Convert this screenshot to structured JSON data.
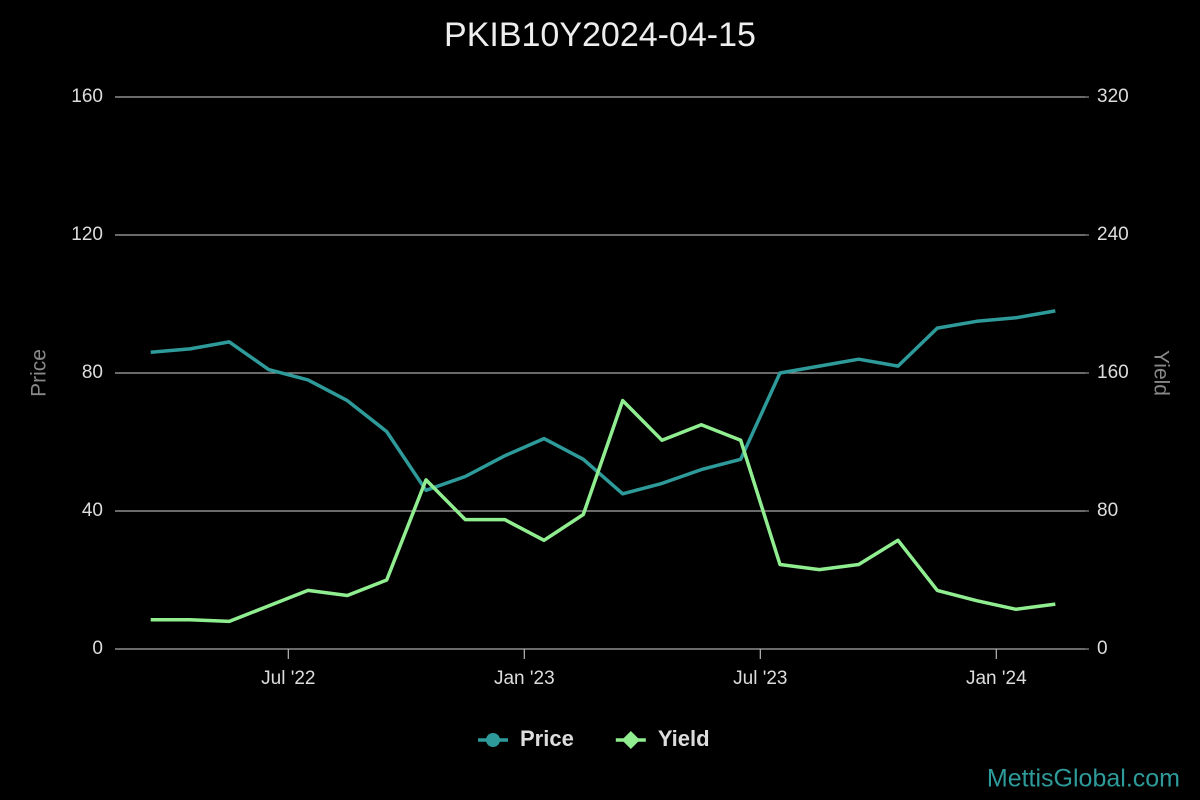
{
  "chart_data": {
    "type": "line",
    "title": "PKIB10Y2024-04-15",
    "y_label": "Price",
    "y2_label": "Yield",
    "watermark": "MettisGlobal.com",
    "x": [
      "2022-03",
      "2022-04",
      "2022-05",
      "2022-06",
      "2022-07",
      "2022-08",
      "2022-09",
      "2022-10",
      "2022-11",
      "2022-12",
      "2023-01",
      "2023-02",
      "2023-03",
      "2023-04",
      "2023-05",
      "2023-06",
      "2023-07",
      "2023-08",
      "2023-09",
      "2023-10",
      "2023-11",
      "2023-12",
      "2024-01",
      "2024-02"
    ],
    "xlim": [
      "2022-03",
      "2024-03"
    ],
    "xticks": [
      {
        "value": "2022-07",
        "label": "Jul '22"
      },
      {
        "value": "2023-01",
        "label": "Jan '23"
      },
      {
        "value": "2023-07",
        "label": "Jul '23"
      },
      {
        "value": "2024-01",
        "label": "Jan '24"
      }
    ],
    "ylim": [
      0,
      160
    ],
    "yticks": [
      0,
      40,
      80,
      120,
      160
    ],
    "y2lim": [
      0,
      320
    ],
    "y2ticks": [
      0,
      80,
      160,
      240,
      320
    ],
    "grid": true,
    "series": [
      {
        "name": "Price",
        "color": "#2e9a9a",
        "marker": "circle",
        "values": [
          86,
          87,
          89,
          81,
          78,
          72,
          63,
          46,
          50,
          56,
          61,
          55,
          45,
          48,
          52,
          55,
          80,
          82,
          84,
          82,
          93,
          95,
          96,
          98
        ]
      },
      {
        "name": "Yield",
        "color": "#90ee90",
        "marker": "diamond",
        "axis": "y2",
        "values": [
          17,
          17,
          16,
          25,
          34,
          31,
          40,
          98,
          75,
          75,
          63,
          78,
          144,
          121,
          130,
          121,
          49,
          46,
          49,
          63,
          34,
          28,
          23,
          26
        ]
      }
    ]
  }
}
